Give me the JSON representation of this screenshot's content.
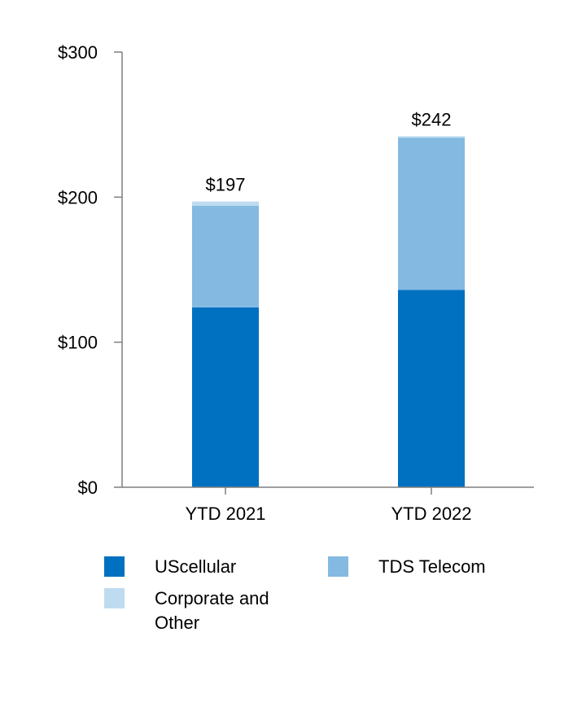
{
  "chart_data": {
    "type": "bar",
    "stacked": true,
    "categories": [
      "YTD 2021",
      "YTD 2022"
    ],
    "series": [
      {
        "name": "UScellular",
        "values": [
          124,
          136
        ],
        "color": "#0070C0"
      },
      {
        "name": "TDS Telecom",
        "values": [
          70,
          105
        ],
        "color": "#84B9E1"
      },
      {
        "name": "Corporate and Other",
        "values": [
          3,
          1
        ],
        "color": "#BDDCF0"
      }
    ],
    "totals": [
      "$197",
      "$242"
    ],
    "yticks": [
      {
        "value": 0,
        "label": "$0"
      },
      {
        "value": 100,
        "label": "$100"
      },
      {
        "value": 200,
        "label": "$200"
      },
      {
        "value": 300,
        "label": "$300"
      }
    ],
    "ylim": [
      0,
      300
    ],
    "legend_position": "bottom",
    "grid": false
  }
}
